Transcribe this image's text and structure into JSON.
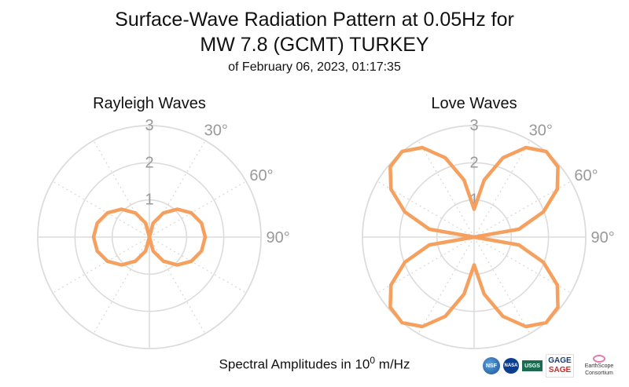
{
  "header": {
    "title_line1": "Surface-Wave Radiation Pattern at 0.05Hz for",
    "title_line2": "MW 7.8 (GCMT) TURKEY",
    "subtitle": "of February 06, 2023, 01:17:35"
  },
  "footer": {
    "label_prefix": "Spectral Amplitudes in 10",
    "exponent": "0",
    "label_suffix": " m/Hz"
  },
  "logos": {
    "nsf": "NSF",
    "nasa": "NASA",
    "usgs": "USGS",
    "gage": "GAGE",
    "sage": "SAGE",
    "earthscope": "EarthScope",
    "consortium": "Consortium"
  },
  "colors": {
    "pattern": "#f5a05e",
    "grid": "#dcdcdc",
    "tick_text": "#999999"
  },
  "chart_data": [
    {
      "type": "polar-line",
      "title": "Rayleigh Waves",
      "theta_unit": "degrees",
      "theta_direction": "clockwise",
      "theta_zero": "top",
      "r_range": [
        0,
        3
      ],
      "r_ticks": [
        1,
        2,
        3
      ],
      "theta_tick_labels": [
        "30°",
        "60°",
        "90°"
      ],
      "grid": true,
      "series": [
        {
          "theta": [
            0,
            15,
            30,
            45,
            60,
            75,
            90,
            105,
            120,
            135,
            150,
            165,
            180,
            195,
            210,
            225,
            240,
            255,
            270,
            285,
            300,
            315,
            330,
            345,
            360
          ],
          "r": [
            0.0,
            0.39,
            0.75,
            1.06,
            1.3,
            1.45,
            1.5,
            1.45,
            1.3,
            1.06,
            0.75,
            0.39,
            0.0,
            0.39,
            0.75,
            1.06,
            1.3,
            1.45,
            1.5,
            1.45,
            1.3,
            1.06,
            0.75,
            0.39,
            0.0
          ]
        }
      ]
    },
    {
      "type": "polar-line",
      "title": "Love Waves",
      "theta_unit": "degrees",
      "theta_direction": "clockwise",
      "theta_zero": "top",
      "r_range": [
        0,
        3
      ],
      "r_ticks": [
        1,
        2,
        3
      ],
      "theta_tick_labels": [
        "30°",
        "60°",
        "90°"
      ],
      "grid": true,
      "series": [
        {
          "theta": [
            0,
            10,
            20,
            30,
            40,
            50,
            60,
            70,
            80,
            90,
            100,
            110,
            120,
            130,
            140,
            150,
            160,
            170,
            180,
            190,
            200,
            210,
            220,
            230,
            240,
            250,
            260,
            270,
            280,
            290,
            300,
            310,
            320,
            330,
            340,
            350,
            360
          ],
          "r": [
            0.75,
            1.56,
            2.27,
            2.78,
            3.01,
            2.94,
            2.58,
            1.98,
            1.22,
            0.0,
            1.22,
            1.98,
            2.58,
            2.94,
            3.01,
            2.78,
            2.27,
            1.56,
            0.75,
            1.56,
            2.27,
            2.78,
            3.01,
            2.94,
            2.58,
            1.98,
            1.22,
            0.0,
            1.22,
            1.98,
            2.58,
            2.94,
            3.01,
            2.78,
            2.27,
            1.56,
            0.75
          ]
        }
      ]
    }
  ]
}
